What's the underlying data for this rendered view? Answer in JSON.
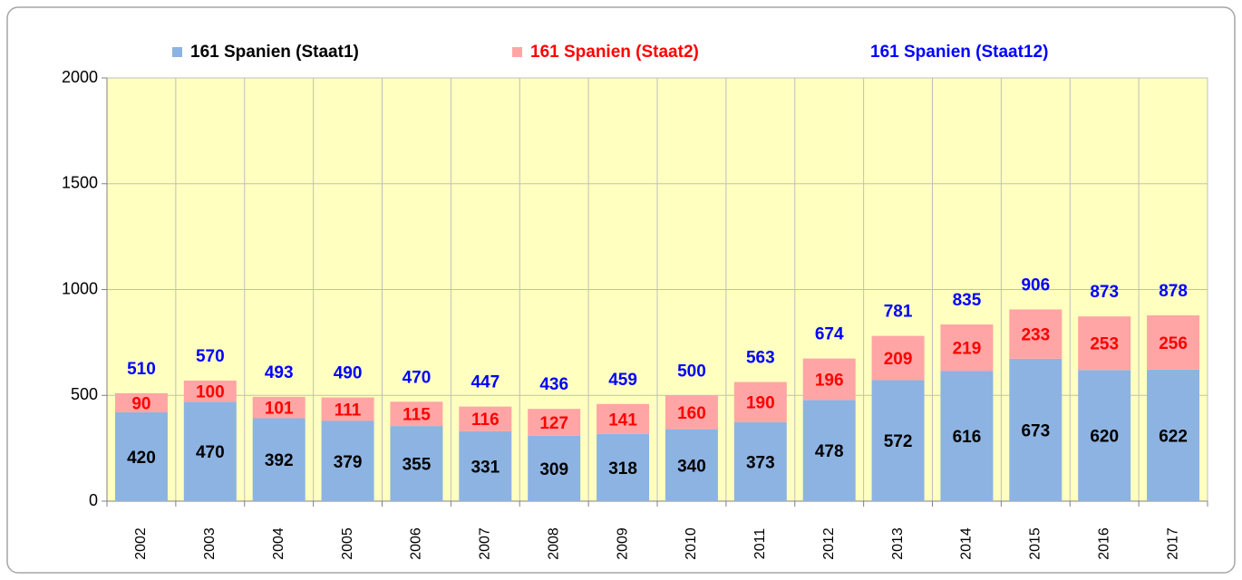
{
  "chart_data": {
    "type": "stacked_bar",
    "categories": [
      "2002",
      "2003",
      "2004",
      "2005",
      "2006",
      "2007",
      "2008",
      "2009",
      "2010",
      "2011",
      "2012",
      "2013",
      "2014",
      "2015",
      "2016",
      "2017"
    ],
    "series": [
      {
        "name": "161 Spanien (Staat1)",
        "color": "#8db3e2",
        "label_color": "#000000",
        "values": [
          420,
          470,
          392,
          379,
          355,
          331,
          309,
          318,
          340,
          373,
          478,
          572,
          616,
          673,
          620,
          622
        ]
      },
      {
        "name": "161 Spanien (Staat2)",
        "color": "#ffa5a5",
        "label_color": "#ff0000",
        "values": [
          90,
          100,
          101,
          111,
          115,
          116,
          127,
          141,
          160,
          190,
          196,
          209,
          219,
          233,
          253,
          256
        ]
      },
      {
        "name": "161 Spanien (Staat12)",
        "color": "#0000ff",
        "label_color": "#0000ff",
        "total": true,
        "values": [
          510,
          570,
          493,
          490,
          470,
          447,
          436,
          459,
          500,
          563,
          674,
          781,
          835,
          906,
          873,
          878
        ]
      }
    ],
    "ylim": [
      0,
      2000
    ],
    "yticks": [
      0,
      500,
      1000,
      1500,
      2000
    ],
    "grid": true,
    "legend": "top"
  }
}
